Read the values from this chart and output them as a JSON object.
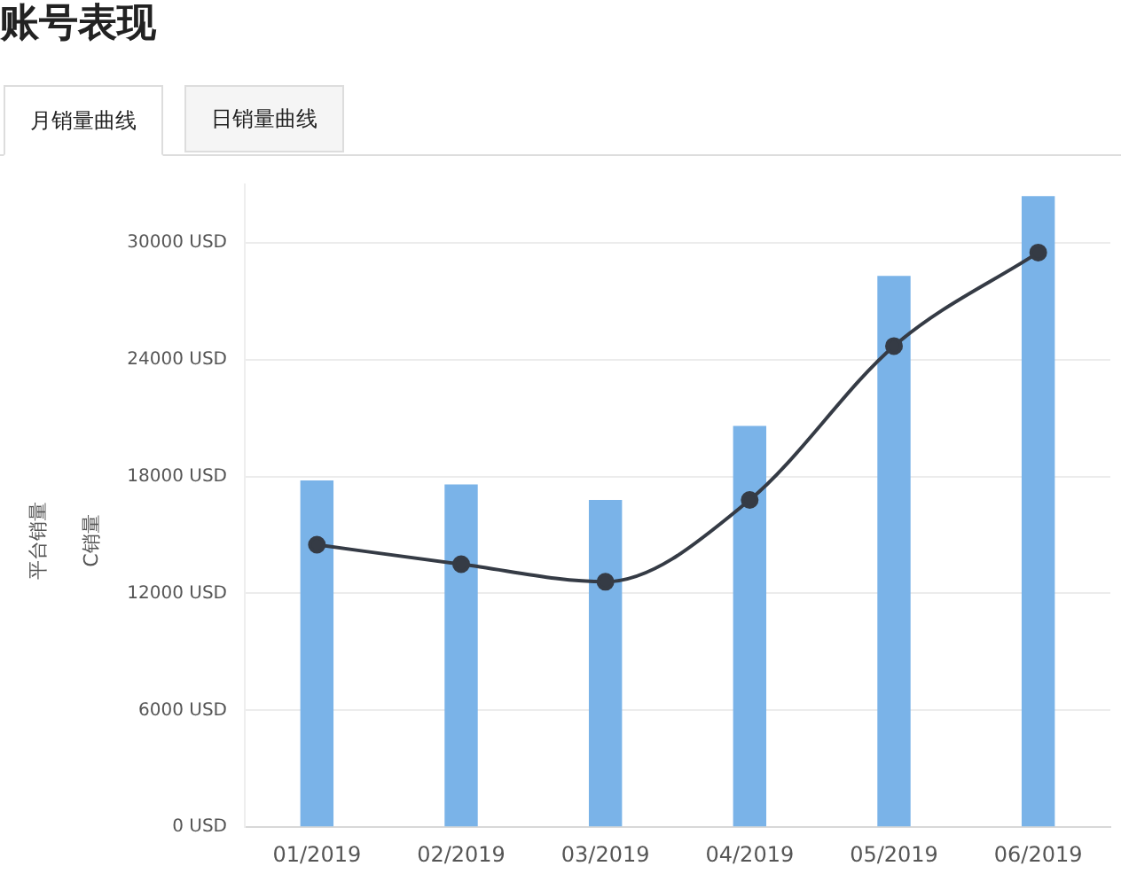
{
  "chart_data": {
    "type": "bar",
    "title": "账号表现",
    "annotations": [
      "月销量曲线",
      "日销量曲线",
      "平台销量",
      "C销量"
    ],
    "categories": [
      "01/2019",
      "02/2019",
      "03/2019",
      "04/2019",
      "05/2019",
      "06/2019"
    ],
    "series": [
      {
        "color": "#7ab3e8",
        "values": [
          17800,
          17600,
          16800,
          20600,
          28300,
          32400
        ]
      },
      {
        "type": "line",
        "color": "#353b45",
        "marker": "circle",
        "values": [
          14500,
          13500,
          12600,
          16800,
          24700,
          29500
        ]
      }
    ],
    "ylim": [
      0,
      33000
    ],
    "yticks": [
      {
        "value": 0,
        "label": "0 USD"
      },
      {
        "value": 6000,
        "label": "6000 USD"
      },
      {
        "value": 12000,
        "label": "12000 USD"
      },
      {
        "value": 18000,
        "label": "18000 USD"
      },
      {
        "value": 24000,
        "label": "24000 USD"
      },
      {
        "value": 30000,
        "label": "30000 USD"
      }
    ],
    "grid": "y",
    "legend": false
  }
}
